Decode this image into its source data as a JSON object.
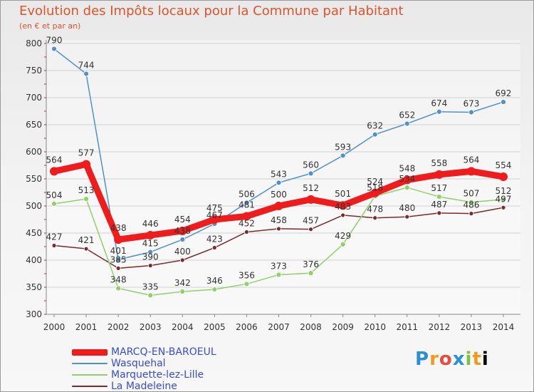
{
  "chart_data": {
    "type": "line",
    "title": "Evolution des Impôts locaux pour la Commune par Habitant",
    "subtitle": "(en € et par an)",
    "xlabel": "",
    "ylabel": "",
    "ylim": [
      300,
      800
    ],
    "yticks": [
      "300",
      "350",
      "400",
      "450",
      "500",
      "550",
      "600",
      "650",
      "700",
      "750",
      "800"
    ],
    "x": [
      "2000",
      "2001",
      "2002",
      "2003",
      "2004",
      "2005",
      "2006",
      "2007",
      "2008",
      "2009",
      "2010",
      "2011",
      "2012",
      "2013",
      "2014"
    ],
    "series": [
      {
        "name": "MARCQ-EN-BAROEUL",
        "color": "#ee1c1c",
        "values": [
          564,
          577,
          438,
          446,
          454,
          475,
          481,
          500,
          512,
          501,
          524,
          548,
          558,
          564,
          554
        ],
        "labels": [
          "564",
          "577",
          "438",
          "446",
          "454",
          "475",
          "481",
          "500",
          "512",
          "501",
          "524",
          "548",
          "558",
          "564",
          "554"
        ]
      },
      {
        "name": "Wasquehal",
        "color": "#4f91cf",
        "values": [
          790,
          744,
          401,
          415,
          438,
          467,
          506,
          543,
          560,
          593,
          632,
          652,
          674,
          673,
          692
        ],
        "labels": [
          "790",
          "744",
          "401",
          "415",
          "438",
          "467",
          "506",
          "543",
          "560",
          "593",
          "632",
          "652",
          "674",
          "673",
          "692"
        ]
      },
      {
        "name": "Marquette-lez-Lille",
        "color": "#8ed16b",
        "values": [
          504,
          513,
          348,
          335,
          342,
          346,
          356,
          373,
          376,
          429,
          518,
          534,
          517,
          507,
          512
        ],
        "labels": [
          "504",
          "513",
          "348",
          "335",
          "342",
          "346",
          "356",
          "373",
          "376",
          "429",
          "518",
          "534",
          "517",
          "507",
          "512"
        ]
      },
      {
        "name": "La Madeleine",
        "color": "#7b2b2b",
        "values": [
          427,
          421,
          385,
          390,
          400,
          423,
          452,
          458,
          457,
          483,
          478,
          480,
          487,
          486,
          497
        ],
        "labels": [
          "427",
          "421",
          "385",
          "390",
          "400",
          "423",
          "452",
          "458",
          "457",
          "483",
          "478",
          "480",
          "487",
          "486",
          "497"
        ]
      }
    ],
    "legend": "bottom-left"
  },
  "logo": {
    "letters": [
      "P",
      "r",
      "o",
      "x",
      "i",
      "t",
      "i"
    ]
  }
}
